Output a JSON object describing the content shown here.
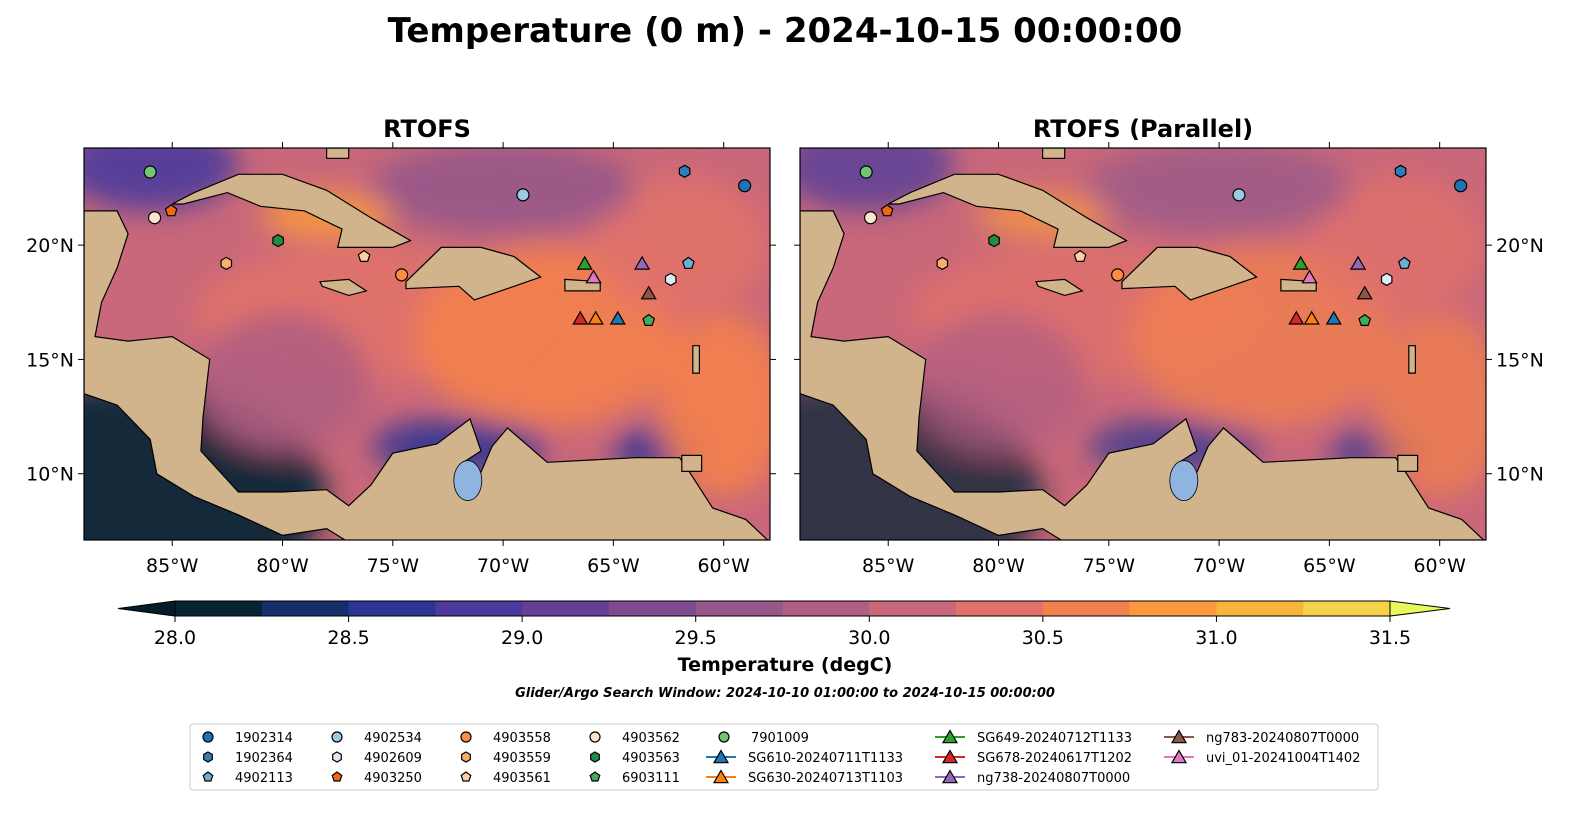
{
  "title": "Temperature (0 m) - 2024-10-15 00:00:00",
  "panels": [
    {
      "title": "RTOFS"
    },
    {
      "title": "RTOFS (Parallel)"
    }
  ],
  "axes": {
    "lon_ticks": [
      -85,
      -80,
      -75,
      -70,
      -65,
      -60
    ],
    "lon_labels": [
      "85°W",
      "80°W",
      "75°W",
      "70°W",
      "65°W",
      "60°W"
    ],
    "lat_ticks": [
      10,
      15,
      20
    ],
    "lat_labels": [
      "10°N",
      "15°N",
      "20°N"
    ],
    "lon_range": [
      -89,
      -57.9
    ],
    "lat_range": [
      7.1,
      24.25
    ]
  },
  "colorbar": {
    "label": "Temperature (degC)",
    "tick_values": [
      28.0,
      28.5,
      29.0,
      29.5,
      30.0,
      30.5,
      31.0,
      31.5
    ],
    "tick_labels": [
      "28.0",
      "28.5",
      "29.0",
      "29.5",
      "30.0",
      "30.5",
      "31.0",
      "31.5"
    ],
    "colors": [
      "#062334",
      "#142f6b",
      "#2c3594",
      "#4b3a9c",
      "#663f95",
      "#7e4b8f",
      "#965889",
      "#b05e81",
      "#c9687a",
      "#e1726a",
      "#f3814d",
      "#fb9a3c",
      "#f9b43f",
      "#f6d14a"
    ],
    "under_color": "#041c28",
    "over_color": "#e8fa5b"
  },
  "search_window": "Glider/Argo Search Window: 2024-10-10 01:00:00 to 2024-10-15 00:00:00",
  "legend": [
    {
      "label": "1902314",
      "shape": "circle",
      "color": "#2171b5",
      "lon": -59.05,
      "lat": 22.6
    },
    {
      "label": "1902364",
      "shape": "hexagon",
      "color": "#2c7fb8",
      "lon": -61.77,
      "lat": 23.23
    },
    {
      "label": "4902113",
      "shape": "pentagon",
      "color": "#6baed6",
      "lon": -61.6,
      "lat": 19.2
    },
    {
      "label": "4902534",
      "shape": "circle",
      "color": "#9ecae1",
      "lon": -69.1,
      "lat": 22.2
    },
    {
      "label": "4902609",
      "shape": "hexagon",
      "color": "#deebf7",
      "lon": -62.4,
      "lat": 18.5
    },
    {
      "label": "4903250",
      "shape": "pentagon",
      "color": "#f16913",
      "lon": -85.05,
      "lat": 21.5
    },
    {
      "label": "4903558",
      "shape": "circle",
      "color": "#fd8d3c",
      "lon": -74.6,
      "lat": 18.7
    },
    {
      "label": "4903559",
      "shape": "hexagon",
      "color": "#fdae6b",
      "lon": -82.55,
      "lat": 19.2
    },
    {
      "label": "4903561",
      "shape": "pentagon",
      "color": "#fdd0a2",
      "lon": -76.3,
      "lat": 19.5
    },
    {
      "label": "4903562",
      "shape": "circle",
      "color": "#fee6ce",
      "lon": -85.8,
      "lat": 21.2
    },
    {
      "label": "4903563",
      "shape": "hexagon",
      "color": "#238b45",
      "lon": -80.2,
      "lat": 20.2
    },
    {
      "label": "6903111",
      "shape": "pentagon",
      "color": "#41ab5d",
      "lon": -63.4,
      "lat": 16.7
    },
    {
      "label": "7901009",
      "shape": "circle",
      "color": "#74c476",
      "lon": -86.0,
      "lat": 23.2
    },
    {
      "label": "SG610-20240711T1133",
      "shape": "triangle",
      "color": "#1f77b4",
      "lon": -64.8,
      "lat": 16.8
    },
    {
      "label": "SG630-20240713T1103",
      "shape": "triangle",
      "color": "#ff7f0e",
      "lon": -65.8,
      "lat": 16.8
    },
    {
      "label": "SG649-20240712T1133",
      "shape": "triangle",
      "color": "#2ca02c",
      "lon": -66.3,
      "lat": 19.2
    },
    {
      "label": "SG678-20240617T1202",
      "shape": "triangle",
      "color": "#d62728",
      "lon": -66.5,
      "lat": 16.8
    },
    {
      "label": "ng738-20240807T0000",
      "shape": "triangle",
      "color": "#9467bd",
      "lon": -63.7,
      "lat": 19.2
    },
    {
      "label": "ng783-20240807T0000",
      "shape": "triangle",
      "color": "#8c564b",
      "lon": -63.4,
      "lat": 17.9
    },
    {
      "label": "uvi_01-20241004T1402",
      "shape": "triangle",
      "color": "#e377c2",
      "lon": -65.9,
      "lat": 18.6
    }
  ]
}
